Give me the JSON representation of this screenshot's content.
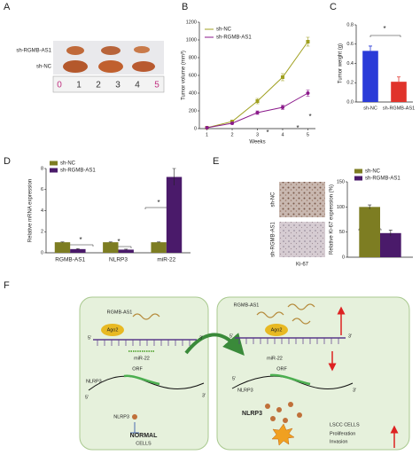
{
  "panel_labels": [
    "A",
    "B",
    "C",
    "D",
    "E",
    "F"
  ],
  "photos": {
    "rows": [
      "sh-RGMB-AS1",
      "sh-NC"
    ],
    "ruler": [
      "0",
      "1",
      "2",
      "3",
      "4",
      "5"
    ],
    "stain_rows": [
      "sh-NC",
      "sh-RGMB-AS1"
    ],
    "stain": "Ki-67"
  },
  "chart_data": [
    {
      "type": "line",
      "x": [
        1,
        2,
        3,
        4,
        5
      ],
      "xlim": [
        0.7,
        5.3
      ],
      "xticks": [
        1,
        2,
        3,
        4,
        5
      ],
      "xlabel": "Weeks",
      "ylim": [
        0,
        1200
      ],
      "yticks": [
        0,
        200,
        400,
        600,
        800,
        1000,
        1200
      ],
      "ylabel": "Tumor volume (mm³)",
      "legend": "upper left",
      "series": [
        {
          "name": "sh-NC",
          "color": "#a0a020",
          "values": [
            10,
            80,
            310,
            580,
            980
          ],
          "errors": [
            5,
            15,
            30,
            40,
            50
          ]
        },
        {
          "name": "sh-RGMB-AS1",
          "color": "#8b1a8b",
          "values": [
            10,
            60,
            180,
            240,
            400
          ],
          "errors": [
            5,
            10,
            20,
            25,
            35
          ]
        }
      ],
      "annotations": [
        "*",
        "*",
        "*"
      ]
    },
    {
      "type": "bar",
      "categories": [
        "sh-NC",
        "sh-RGMB-AS1"
      ],
      "values": [
        0.53,
        0.21
      ],
      "errors": [
        0.05,
        0.05
      ],
      "colors": [
        "#2a3bd8",
        "#e0332b"
      ],
      "ylim": [
        0,
        0.8
      ],
      "yticks": [
        {
          "value": 0,
          "label": "0.0"
        },
        0.2,
        0.4,
        0.6,
        0.8
      ],
      "ylabel": "Tumor weight (g)",
      "annotations": [
        "*"
      ]
    },
    {
      "type": "grouped_bar",
      "categories": [
        "RGMB-AS1",
        "NLRP3",
        "miR-22"
      ],
      "legend": "upper left",
      "series": [
        {
          "name": "sh-NC",
          "color": "#7d7d22",
          "values": [
            1,
            1,
            1
          ],
          "errors": [
            0.03,
            0.03,
            0.03
          ]
        },
        {
          "name": "sh-RGMB-AS1",
          "color": "#4a1a6a",
          "values": [
            0.35,
            0.3,
            7.2
          ],
          "errors": [
            0.05,
            0.04,
            0.8
          ]
        }
      ],
      "ylim": [
        0,
        8
      ],
      "yticks": [
        0,
        2,
        4,
        6,
        8
      ],
      "ylabel": "Relative mRNA expression",
      "annotations": [
        "*",
        "*",
        "*"
      ]
    },
    {
      "type": "grouped_bar",
      "categories": [
        null
      ],
      "legend": "upper right",
      "series": [
        {
          "name": "sh-NC",
          "color": "#7d7d22",
          "values": [
            100
          ],
          "errors": [
            4
          ]
        },
        {
          "name": "sh-RGMB-AS1",
          "color": "#4a1a6a",
          "values": [
            48
          ],
          "errors": [
            6
          ]
        }
      ],
      "ylim": [
        0,
        150
      ],
      "yticks": [
        0,
        50,
        100,
        150
      ],
      "ylabel": "Relative Ki-67 expression (%)",
      "annotations": [
        "*"
      ]
    }
  ],
  "diagram": {
    "left": {
      "lncrna": "RGMB-AS1",
      "protein": "Ago2",
      "five": "5'",
      "three": "3'",
      "mirna": "miR-22",
      "gene": "NLRP3",
      "orf": "ORF",
      "mfive": "5'",
      "mthree": "3'",
      "product": "NLRP3",
      "cells": [
        "NORMAL",
        "CELLS"
      ]
    },
    "right": {
      "lncrna": "RGMB-AS1",
      "protein": "Ago2",
      "five": "5'",
      "three": "3'",
      "mirna": "miR-22",
      "gene": "NLRP3",
      "orf": "ORF",
      "mfive": "5'",
      "mthree": "3'",
      "product": "NLRP3",
      "cells": "LSCC CELLS",
      "effects": [
        "Proliferation",
        "Invasion"
      ]
    }
  }
}
